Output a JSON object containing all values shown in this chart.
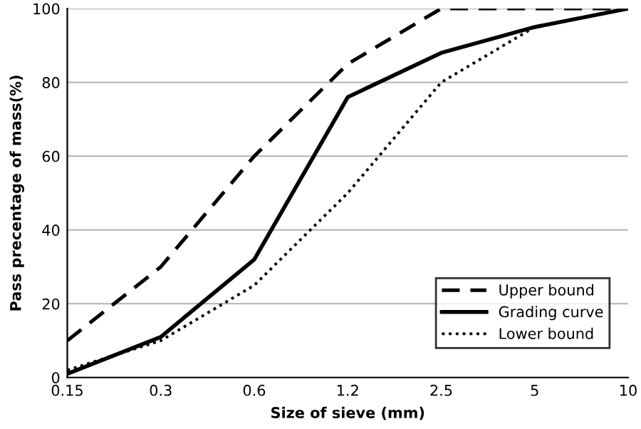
{
  "chart_data": {
    "type": "line",
    "xlabel": "Size of sieve (mm)",
    "ylabel": "Pass precentage of mass(%)",
    "categories": [
      "0.15",
      "0.3",
      "0.6",
      "1.2",
      "2.5",
      "5",
      "10"
    ],
    "series": [
      {
        "name": "Upper bound",
        "color": "#000000",
        "line_style": "dashed",
        "values": [
          10,
          30,
          60,
          85,
          100,
          100,
          100
        ]
      },
      {
        "name": "Grading curve",
        "color": "#000000",
        "line_style": "solid",
        "values": [
          1,
          11,
          32,
          76,
          88,
          95,
          100
        ]
      },
      {
        "name": "Lower bound",
        "color": "#000000",
        "line_style": "dotted",
        "values": [
          2,
          10,
          25,
          50,
          80,
          95,
          100
        ]
      }
    ],
    "ylim": [
      0,
      100
    ],
    "yticks": [
      0,
      20,
      40,
      60,
      80,
      100
    ],
    "grid": "y",
    "legend": "bottom right"
  }
}
